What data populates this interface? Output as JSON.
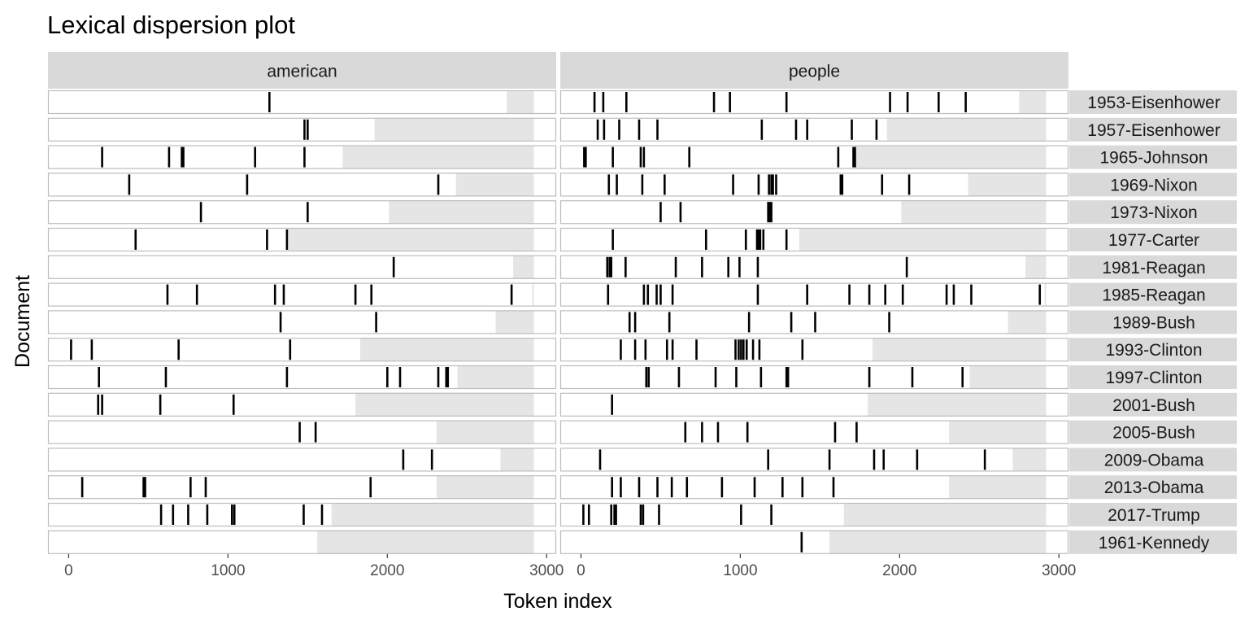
{
  "chart_data": {
    "type": "dispersion",
    "title": "Lexical dispersion plot",
    "xlabel": "Token index",
    "ylabel": "Document",
    "xlim": [
      -130,
      3060
    ],
    "x_ticks": [
      0,
      1000,
      2000,
      3000
    ],
    "grid": false,
    "panel_strip_bg": "#d9d9d9",
    "doc_length_fill": "#ffffff",
    "beyond_length_fill": "#e5e5e5",
    "mark_color": "#000000",
    "panels": [
      "american",
      "people"
    ],
    "documents": [
      {
        "name": "1953-Eisenhower",
        "length": 2750,
        "american": [
          1260
        ],
        "people": [
          85,
          140,
          285,
          835,
          935,
          1290,
          1940,
          2050,
          2245,
          2415
        ]
      },
      {
        "name": "1957-Eisenhower",
        "length": 1920,
        "american": [
          1480,
          1500
        ],
        "people": [
          105,
          145,
          240,
          365,
          480,
          1135,
          1350,
          1420,
          1700,
          1855
        ]
      },
      {
        "name": "1965-Johnson",
        "length": 1720,
        "american": [
          210,
          630,
          710,
          720,
          1170,
          1480
        ],
        "people": [
          20,
          30,
          200,
          375,
          395,
          680,
          1615,
          1710,
          1720
        ]
      },
      {
        "name": "1969-Nixon",
        "length": 2430,
        "american": [
          380,
          1120,
          2320
        ],
        "people": [
          175,
          225,
          385,
          525,
          955,
          1115,
          1180,
          1195,
          1205,
          1225,
          1630,
          1640,
          1890,
          2060
        ]
      },
      {
        "name": "1973-Nixon",
        "length": 2010,
        "american": [
          830,
          1500
        ],
        "people": [
          500,
          625,
          1175,
          1185,
          1195
        ]
      },
      {
        "name": "1977-Carter",
        "length": 1370,
        "american": [
          420,
          1245,
          1370
        ],
        "people": [
          200,
          785,
          1035,
          1105,
          1115,
          1125,
          1145,
          1290
        ]
      },
      {
        "name": "1981-Reagan",
        "length": 2790,
        "american": [
          2040
        ],
        "people": [
          165,
          180,
          190,
          280,
          595,
          760,
          925,
          995,
          1110,
          2045
        ]
      },
      {
        "name": "1985-Reagan",
        "length": 2910,
        "american": [
          620,
          805,
          1295,
          1350,
          1800,
          1900,
          2780
        ],
        "people": [
          170,
          395,
          420,
          475,
          500,
          575,
          1110,
          1420,
          1685,
          1810,
          1910,
          2020,
          2295,
          2340,
          2450,
          2880
        ]
      },
      {
        "name": "1989-Bush",
        "length": 2680,
        "american": [
          1330,
          1930
        ],
        "people": [
          305,
          340,
          555,
          1055,
          1320,
          1470,
          1935
        ]
      },
      {
        "name": "1993-Clinton",
        "length": 1830,
        "american": [
          15,
          145,
          690,
          1390
        ],
        "people": [
          250,
          340,
          405,
          540,
          575,
          725,
          970,
          990,
          1005,
          1020,
          1040,
          1080,
          1120,
          1390
        ]
      },
      {
        "name": "1997-Clinton",
        "length": 2440,
        "american": [
          190,
          610,
          1370,
          2000,
          2080,
          2320,
          2370,
          2380
        ],
        "people": [
          410,
          425,
          615,
          845,
          975,
          1130,
          1290,
          1300,
          1810,
          2080,
          2395
        ]
      },
      {
        "name": "2001-Bush",
        "length": 1800,
        "american": [
          185,
          210,
          575,
          1035
        ],
        "people": [
          195
        ]
      },
      {
        "name": "2005-Bush",
        "length": 2310,
        "american": [
          1450,
          1550
        ],
        "people": [
          655,
          760,
          860,
          1045,
          1595,
          1730
        ]
      },
      {
        "name": "2009-Obama",
        "length": 2710,
        "american": [
          2100,
          2280
        ],
        "people": [
          120,
          1175,
          1560,
          1840,
          1900,
          2110,
          2535
        ]
      },
      {
        "name": "2013-Obama",
        "length": 2310,
        "american": [
          85,
          470,
          480,
          765,
          860,
          1895
        ],
        "people": [
          195,
          250,
          365,
          480,
          570,
          665,
          885,
          1090,
          1265,
          1390,
          1585
        ]
      },
      {
        "name": "2017-Trump",
        "length": 1650,
        "american": [
          580,
          655,
          750,
          870,
          1025,
          1040,
          1475,
          1590
        ],
        "people": [
          15,
          50,
          190,
          210,
          220,
          375,
          390,
          490,
          1005,
          1195
        ]
      },
      {
        "name": "1961-Kennedy",
        "length": 1560,
        "american": [],
        "people": [
          1385
        ]
      }
    ]
  }
}
